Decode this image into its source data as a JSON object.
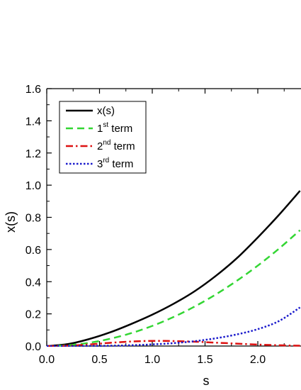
{
  "chart_data": {
    "type": "line",
    "xlabel": "s",
    "ylabel": "x(s)",
    "xlim": [
      0.0,
      2.4
    ],
    "ylim": [
      0.0,
      1.6
    ],
    "xticks": [
      "0.0",
      "0.5",
      "1.0",
      "1.5",
      "2.0"
    ],
    "yticks": [
      "0.0",
      "0.2",
      "0.4",
      "0.6",
      "0.8",
      "1.0",
      "1.2",
      "1.4",
      "1.6"
    ],
    "grid": false,
    "legend_position": "top-left",
    "series": [
      {
        "name": "x(s)",
        "label_base": "x(s)",
        "label_sup": "",
        "label_suffix": "",
        "color": "#000000",
        "style": "solid",
        "x": [
          0.0,
          0.2,
          0.4,
          0.6,
          0.8,
          1.0,
          1.2,
          1.4,
          1.6,
          1.8,
          2.0,
          2.2,
          2.4
        ],
        "y": [
          0.0,
          0.012,
          0.043,
          0.085,
          0.137,
          0.195,
          0.262,
          0.34,
          0.435,
          0.545,
          0.675,
          0.815,
          0.965
        ]
      },
      {
        "name": "1st term",
        "label_base": "1",
        "label_sup": "st",
        "label_suffix": " term",
        "color": "#33d633",
        "style": "dashed",
        "x": [
          0.0,
          0.2,
          0.4,
          0.6,
          0.8,
          1.0,
          1.2,
          1.4,
          1.6,
          1.8,
          2.0,
          2.2,
          2.4
        ],
        "y": [
          0.0,
          0.005,
          0.02,
          0.045,
          0.08,
          0.125,
          0.18,
          0.245,
          0.32,
          0.405,
          0.5,
          0.605,
          0.72
        ]
      },
      {
        "name": "2nd term",
        "label_base": "2",
        "label_sup": "nd",
        "label_suffix": " term",
        "color": "#dd1111",
        "style": "dashdot",
        "x": [
          0.0,
          0.2,
          0.4,
          0.6,
          0.8,
          1.0,
          1.2,
          1.4,
          1.6,
          1.8,
          2.0,
          2.2,
          2.4
        ],
        "y": [
          0.0,
          0.002,
          0.01,
          0.02,
          0.028,
          0.032,
          0.031,
          0.027,
          0.021,
          0.015,
          0.009,
          0.005,
          0.002
        ]
      },
      {
        "name": "3rd term",
        "label_base": "3",
        "label_sup": "rd",
        "label_suffix": " term",
        "color": "#1a1acc",
        "style": "dotted",
        "x": [
          0.0,
          0.2,
          0.4,
          0.6,
          0.8,
          1.0,
          1.2,
          1.4,
          1.6,
          1.8,
          2.0,
          2.2,
          2.4
        ],
        "y": [
          0.0,
          0.0,
          0.0005,
          0.002,
          0.005,
          0.01,
          0.018,
          0.03,
          0.048,
          0.072,
          0.105,
          0.155,
          0.24
        ]
      }
    ]
  }
}
